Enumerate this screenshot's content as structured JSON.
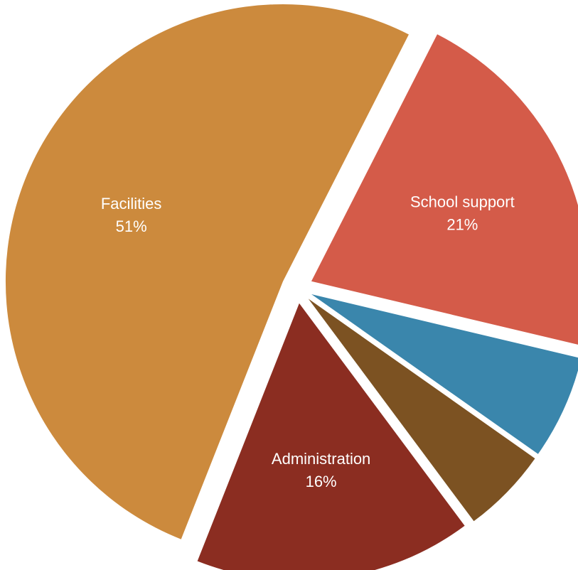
{
  "chart_data": {
    "type": "pie",
    "slices": [
      {
        "label": "School support",
        "value": 21,
        "value_label": "21%",
        "color": "#D45B49"
      },
      {
        "label": "",
        "value": 6,
        "value_label": "",
        "color": "#3A86AC"
      },
      {
        "label": "",
        "value": 5,
        "value_label": "",
        "color": "#7C5222"
      },
      {
        "label": "Administration",
        "value": 16,
        "value_label": "16%",
        "color": "#8B2D21"
      },
      {
        "label": "Facilities",
        "value": 51,
        "value_label": "51%",
        "color": "#CC8A3D"
      }
    ]
  }
}
